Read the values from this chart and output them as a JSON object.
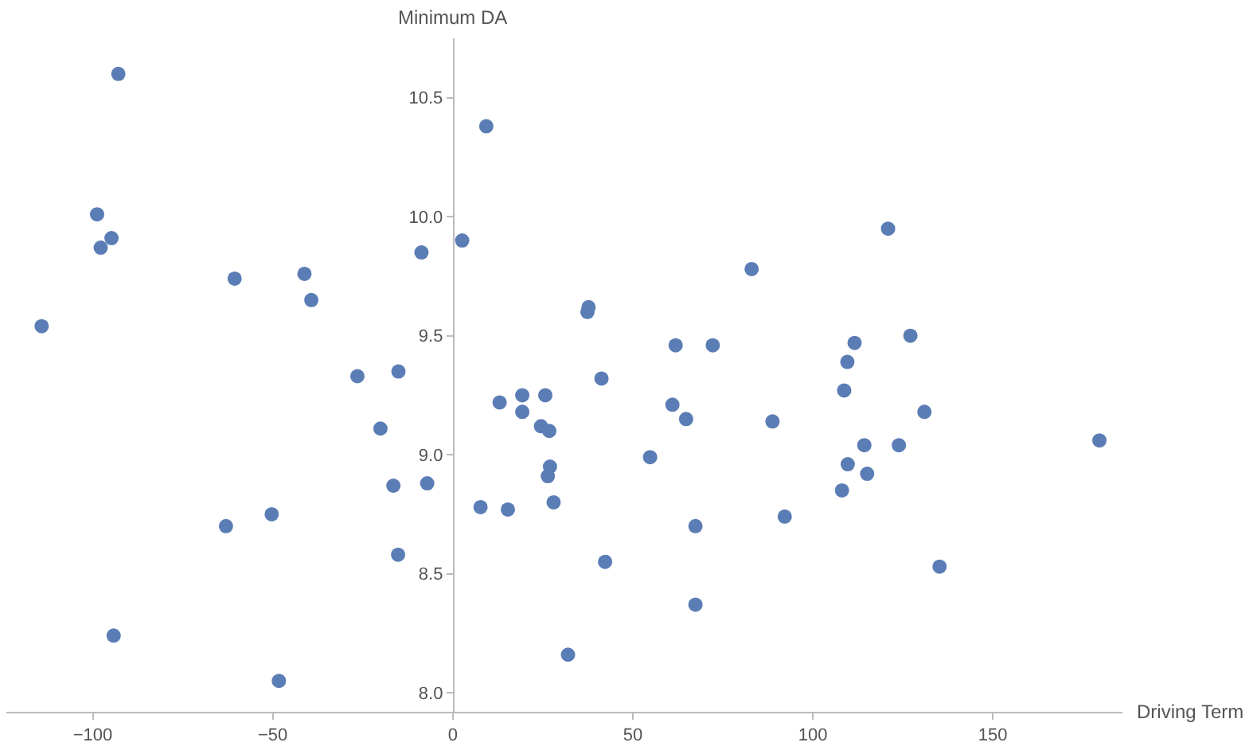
{
  "chart_data": {
    "type": "scatter",
    "xlabel": "Driving Term",
    "ylabel": "Minimum DA",
    "x": [
      -92.9,
      -98.8,
      -94.8,
      -97.8,
      -60.6,
      -41.2,
      -39.3,
      -114.2,
      -8.7,
      -26.5,
      -15.1,
      -20.1,
      -16.5,
      -7.1,
      -50.3,
      -63.0,
      -15.2,
      -94.2,
      -48.3,
      9.3,
      2.6,
      83.0,
      37.7,
      37.4,
      61.9,
      72.2,
      41.3,
      13.0,
      19.3,
      25.7,
      19.3,
      24.5,
      26.8,
      27.0,
      26.4,
      28.0,
      7.7,
      15.3,
      32.0,
      42.3,
      54.8,
      61.0,
      64.8,
      67.4,
      67.4,
      88.8,
      92.2,
      108.7,
      131.0,
      114.3,
      123.9,
      179.6,
      109.7,
      115.1,
      108.1,
      135.2,
      120.9,
      111.6,
      127.1,
      109.6
    ],
    "series": [
      {
        "color": "#5b7db5",
        "values": [
          10.6,
          10.01,
          9.91,
          9.87,
          9.74,
          9.76,
          9.65,
          9.54,
          9.85,
          9.33,
          9.35,
          9.11,
          8.87,
          8.88,
          8.75,
          8.7,
          8.58,
          8.24,
          8.05,
          10.38,
          9.9,
          9.78,
          9.62,
          9.6,
          9.46,
          9.46,
          9.32,
          9.22,
          9.25,
          9.25,
          9.18,
          9.12,
          9.1,
          8.95,
          8.91,
          8.8,
          8.78,
          8.77,
          8.16,
          8.55,
          8.99,
          9.21,
          9.15,
          8.7,
          8.37,
          9.14,
          8.74,
          9.27,
          9.18,
          9.04,
          9.04,
          9.06,
          8.96,
          8.92,
          8.85,
          8.53,
          9.95,
          9.47,
          9.5,
          9.39
        ]
      }
    ],
    "xlim": [
      -124,
      186
    ],
    "ylim": [
      7.92,
      10.75
    ],
    "xticks": [
      {
        "value": -100,
        "label": "−100"
      },
      {
        "value": -50,
        "label": "−50"
      },
      0,
      50,
      100,
      150
    ],
    "yticks": [
      {
        "value": 8,
        "label": "8.0"
      },
      8.5,
      {
        "value": 9,
        "label": "9.0"
      },
      9.5,
      {
        "value": 10,
        "label": "10.0"
      },
      10.5
    ],
    "marker": "circle"
  }
}
